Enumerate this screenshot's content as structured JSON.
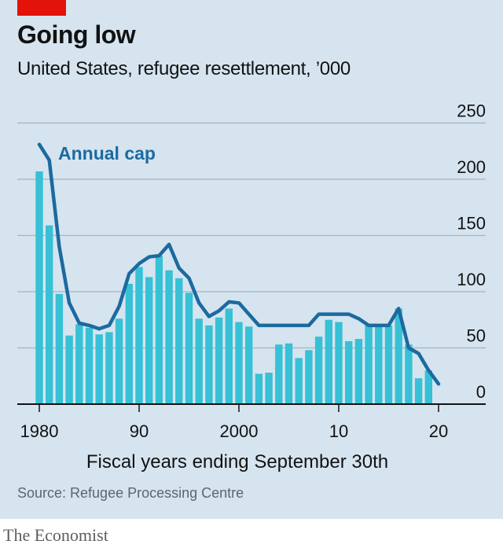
{
  "header": {
    "title": "Going low",
    "subtitle": "United States, refugee resettlement, ’000"
  },
  "footer": {
    "source": "Source: Refugee Processing Centre",
    "brand": "The Economist"
  },
  "colors": {
    "background": "#d6e4ef",
    "bar": "#36c1d6",
    "line": "#1b6aa0",
    "grid": "#a8b4bf",
    "accent": "#e3120b"
  },
  "chart_data": {
    "type": "bar",
    "title": "Going low",
    "subtitle": "United States, refugee resettlement, ’000",
    "xlabel": "Fiscal years ending September 30th",
    "ylabel": "",
    "ylim": [
      0,
      250
    ],
    "yticks": [
      0,
      50,
      100,
      150,
      200,
      250
    ],
    "xlim": [
      1980,
      2020
    ],
    "xticks": [
      {
        "value": 1980,
        "label": "1980"
      },
      {
        "value": 1990,
        "label": "90"
      },
      {
        "value": 2000,
        "label": "2000"
      },
      {
        "value": 2010,
        "label": "10"
      },
      {
        "value": 2020,
        "label": "20"
      }
    ],
    "grid": true,
    "years": [
      1980,
      1981,
      1982,
      1983,
      1984,
      1985,
      1986,
      1987,
      1988,
      1989,
      1990,
      1991,
      1992,
      1993,
      1994,
      1995,
      1996,
      1997,
      1998,
      1999,
      2000,
      2001,
      2002,
      2003,
      2004,
      2005,
      2006,
      2007,
      2008,
      2009,
      2010,
      2011,
      2012,
      2013,
      2014,
      2015,
      2016,
      2017,
      2018,
      2019
    ],
    "series": [
      {
        "type": "bar",
        "values": [
          207,
          159,
          98,
          61,
          71,
          68,
          62,
          64,
          76,
          107,
          122,
          113,
          132,
          119,
          112,
          99,
          76,
          70,
          77,
          85,
          73,
          69,
          27,
          28,
          53,
          54,
          41,
          48,
          60,
          75,
          73,
          56,
          58,
          70,
          70,
          70,
          85,
          53,
          23,
          30
        ]
      },
      {
        "type": "line",
        "name": "Annual cap",
        "x": [
          1980,
          1981,
          1982,
          1983,
          1984,
          1985,
          1986,
          1987,
          1988,
          1989,
          1990,
          1991,
          1992,
          1993,
          1994,
          1995,
          1996,
          1997,
          1998,
          1999,
          2000,
          2001,
          2002,
          2003,
          2004,
          2005,
          2006,
          2007,
          2008,
          2009,
          2010,
          2011,
          2012,
          2013,
          2014,
          2015,
          2016,
          2017,
          2018,
          2019,
          2020
        ],
        "values": [
          231,
          217,
          140,
          90,
          72,
          70,
          67,
          70,
          87,
          116,
          125,
          131,
          132,
          142,
          121,
          112,
          90,
          78,
          83,
          91,
          90,
          80,
          70,
          70,
          70,
          70,
          70,
          70,
          80,
          80,
          80,
          80,
          76,
          70,
          70,
          70,
          85,
          50,
          45,
          30,
          18
        ]
      }
    ]
  }
}
